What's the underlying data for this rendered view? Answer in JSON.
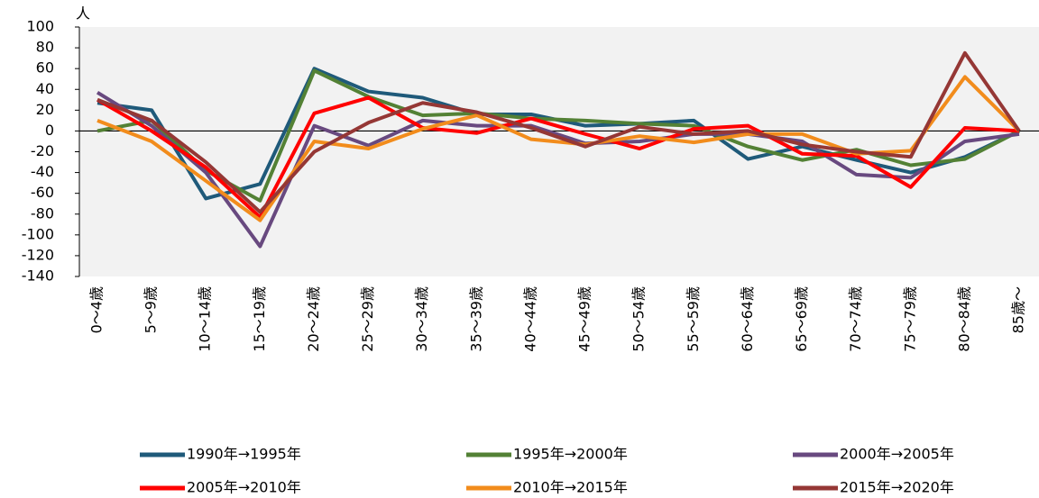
{
  "chart_data": {
    "type": "line",
    "y_unit": "人",
    "categories": [
      "0～4歳",
      "5～9歳",
      "10～14歳",
      "15～19歳",
      "20～24歳",
      "25～29歳",
      "30～34歳",
      "35～39歳",
      "40～44歳",
      "45～49歳",
      "50～54歳",
      "55～59歳",
      "60～64歳",
      "65～69歳",
      "70～74歳",
      "75～79歳",
      "80～84歳",
      "85歳～"
    ],
    "series": [
      {
        "name": "1990年→1995年",
        "color": "#1f5a7a",
        "values": [
          27,
          20,
          -65,
          -51,
          60,
          38,
          32,
          16,
          16,
          5,
          7,
          10,
          -27,
          -15,
          -28,
          -40,
          -25,
          0
        ]
      },
      {
        "name": "1995年→2000年",
        "color": "#538135",
        "values": [
          0,
          10,
          -38,
          -67,
          58,
          33,
          15,
          17,
          12,
          10,
          7,
          5,
          -15,
          -28,
          -18,
          -33,
          -27,
          0
        ]
      },
      {
        "name": "2000年→2005年",
        "color": "#68497f",
        "values": [
          37,
          5,
          -40,
          -111,
          5,
          -14,
          10,
          5,
          5,
          -12,
          -10,
          -3,
          -3,
          -10,
          -42,
          -45,
          -10,
          -3
        ]
      },
      {
        "name": "2005年→2010年",
        "color": "#ff0000",
        "values": [
          30,
          0,
          -35,
          -83,
          17,
          32,
          3,
          -2,
          12,
          -3,
          -17,
          2,
          5,
          -22,
          -24,
          -54,
          3,
          0
        ]
      },
      {
        "name": "2010年→2015年",
        "color": "#f28c1c",
        "values": [
          10,
          -10,
          -48,
          -86,
          -10,
          -17,
          2,
          15,
          -8,
          -13,
          -5,
          -11,
          -3,
          -3,
          -22,
          -19,
          52,
          0
        ]
      },
      {
        "name": "2015年→2020年",
        "color": "#953735",
        "values": [
          30,
          10,
          -30,
          -78,
          -20,
          8,
          27,
          18,
          3,
          -15,
          4,
          -3,
          0,
          -13,
          -20,
          -25,
          75,
          0
        ]
      }
    ],
    "ylim": [
      -140,
      100
    ],
    "yticks": [
      100,
      80,
      60,
      40,
      20,
      0,
      -20,
      -40,
      -60,
      -80,
      -100,
      -120,
      -140
    ]
  }
}
